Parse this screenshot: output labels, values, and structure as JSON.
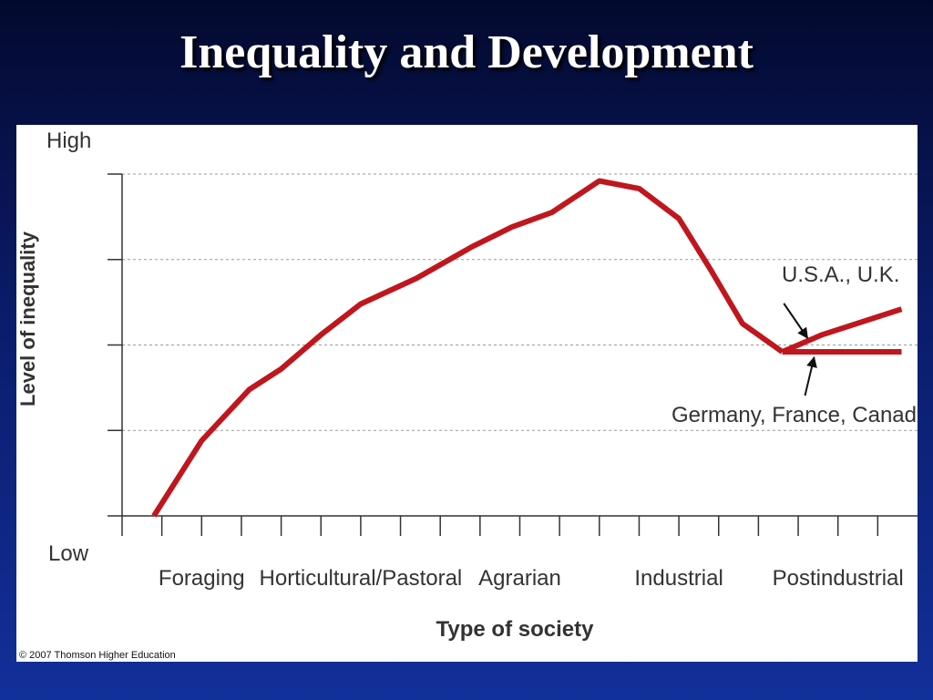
{
  "slide": {
    "title": "Inequality and Development"
  },
  "copyright": "© 2007 Thomson Higher Education",
  "colors": {
    "background_top": "#03092e",
    "background_bottom": "#12309a",
    "line": "#c0161e",
    "panel": "#ffffff"
  },
  "chart_data": {
    "type": "line",
    "xlabel": "Type of society",
    "ylabel": "Level of inequality",
    "y_top_label": "High",
    "y_bottom_label": "Low",
    "categories": [
      "Foraging",
      "Horticultural/Pastoral",
      "Agrarian",
      "Industrial",
      "Postindustrial"
    ],
    "x_range": [
      0,
      5
    ],
    "y_range": [
      0,
      4
    ],
    "grid": "dashed horizontal",
    "series": [
      {
        "x": [
          0.2,
          0.5,
          0.8,
          1.0,
          1.25,
          1.5,
          1.85,
          2.2,
          2.45,
          2.7,
          3.0,
          3.25,
          3.5,
          3.7,
          3.9,
          4.15
        ],
        "y": [
          0.0,
          0.88,
          1.48,
          1.72,
          2.12,
          2.48,
          2.78,
          3.15,
          3.38,
          3.55,
          3.92,
          3.83,
          3.48,
          2.88,
          2.25,
          1.92
        ]
      },
      {
        "name": "U.S.A., U.K.",
        "x": [
          4.15,
          4.4,
          4.9
        ],
        "y": [
          1.92,
          2.12,
          2.42
        ]
      },
      {
        "name": "Germany, France, Canada",
        "x": [
          4.15,
          4.9
        ],
        "y": [
          1.92,
          1.92
        ]
      }
    ],
    "annotations": [
      {
        "text": "U.S.A., U.K.",
        "points_to_series": "U.S.A., U.K."
      },
      {
        "text": "Germany, France, Canada",
        "points_to_series": "Germany, France, Canada"
      }
    ]
  }
}
